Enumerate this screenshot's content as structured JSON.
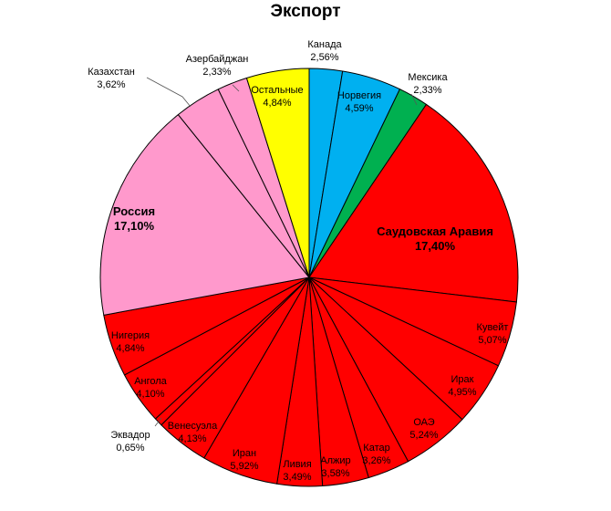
{
  "chart_data": {
    "type": "pie",
    "title": "Экспорт",
    "start": "top, clockwise",
    "slices": [
      {
        "name": "Канада",
        "value": 2.56,
        "label_value": "2,56%",
        "color": "#00b0f0",
        "label_position": "outside"
      },
      {
        "name": "Норвегия",
        "value": 4.59,
        "label_value": "4,59%",
        "color": "#00b0f0",
        "label_position": "inside"
      },
      {
        "name": "Мексика",
        "value": 2.33,
        "label_value": "2,33%",
        "color": "#00b050",
        "label_position": "outside"
      },
      {
        "name": "Саудовская Аравия",
        "value": 17.4,
        "label_value": "17,40%",
        "color": "#ff0000",
        "label_position": "inside",
        "bold": true
      },
      {
        "name": "Кувейт",
        "value": 5.07,
        "label_value": "5,07%",
        "color": "#ff0000",
        "label_position": "inside"
      },
      {
        "name": "Ирак",
        "value": 4.95,
        "label_value": "4,95%",
        "color": "#ff0000",
        "label_position": "inside"
      },
      {
        "name": "ОАЭ",
        "value": 5.24,
        "label_value": "5,24%",
        "color": "#ff0000",
        "label_position": "inside"
      },
      {
        "name": "Катар",
        "value": 3.26,
        "label_value": "3,26%",
        "color": "#ff0000",
        "label_position": "inside"
      },
      {
        "name": "Алжир",
        "value": 3.58,
        "label_value": "3,58%",
        "color": "#ff0000",
        "label_position": "inside"
      },
      {
        "name": "Ливия",
        "value": 3.49,
        "label_value": "3,49%",
        "color": "#ff0000",
        "label_position": "inside"
      },
      {
        "name": "Иран",
        "value": 5.92,
        "label_value": "5,92%",
        "color": "#ff0000",
        "label_position": "inside"
      },
      {
        "name": "Венесуэла",
        "value": 4.13,
        "label_value": "4,13%",
        "color": "#ff0000",
        "label_position": "inside"
      },
      {
        "name": "Эквадор",
        "value": 0.65,
        "label_value": "0,65%",
        "color": "#ff0000",
        "label_position": "outside"
      },
      {
        "name": "Ангола",
        "value": 4.1,
        "label_value": "4,10%",
        "color": "#ff0000",
        "label_position": "inside"
      },
      {
        "name": "Нигерия",
        "value": 4.84,
        "label_value": "4,84%",
        "color": "#ff0000",
        "label_position": "inside"
      },
      {
        "name": "Россия",
        "value": 17.1,
        "label_value": "17,10%",
        "color": "#ff99cc",
        "label_position": "inside",
        "bold": true
      },
      {
        "name": "Казахстан",
        "value": 3.62,
        "label_value": "3,62%",
        "color": "#ff99cc",
        "label_position": "outside"
      },
      {
        "name": "Азербайджан",
        "value": 2.33,
        "label_value": "2,33%",
        "color": "#ff99cc",
        "label_position": "outside"
      },
      {
        "name": "Остальные",
        "value": 4.84,
        "label_value": "4,84%",
        "color": "#ffff00",
        "label_position": "inside"
      }
    ]
  }
}
